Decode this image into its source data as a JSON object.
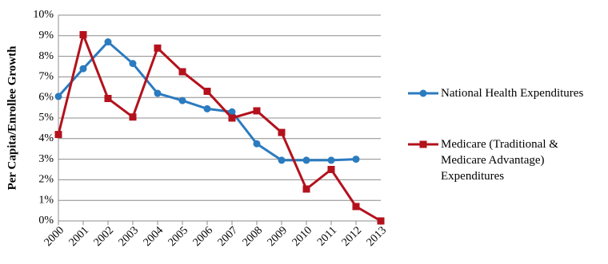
{
  "chart_data": {
    "type": "line",
    "y_label": "Per Capita/Enrollee Growth",
    "categories": [
      "2000",
      "2001",
      "2002",
      "2003",
      "2004",
      "2005",
      "2006",
      "2007",
      "2008",
      "2009",
      "2010",
      "2011",
      "2012",
      "2013"
    ],
    "series": [
      {
        "name": "National Health Expenditures",
        "color": "#2b7bbf",
        "marker": "circle",
        "values": [
          6.05,
          7.4,
          8.7,
          7.65,
          6.2,
          5.85,
          5.45,
          5.3,
          3.75,
          2.95,
          2.95,
          2.95,
          3.0,
          null
        ]
      },
      {
        "name": "Medicare (Traditional & Medicare Advantage) Expenditures",
        "color": "#b3121d",
        "marker": "square",
        "values": [
          4.2,
          9.05,
          5.95,
          5.05,
          8.4,
          7.25,
          6.3,
          5.0,
          5.35,
          4.3,
          1.55,
          2.5,
          0.7,
          0.0
        ]
      }
    ],
    "ylim": [
      0,
      10
    ],
    "yticks": [
      {
        "value": 0,
        "label": "0%"
      },
      {
        "value": 1,
        "label": "1%"
      },
      {
        "value": 2,
        "label": "2%"
      },
      {
        "value": 3,
        "label": "3%"
      },
      {
        "value": 4,
        "label": "4%"
      },
      {
        "value": 5,
        "label": "5%"
      },
      {
        "value": 6,
        "label": "6%"
      },
      {
        "value": 7,
        "label": "7%"
      },
      {
        "value": 8,
        "label": "8%"
      },
      {
        "value": 9,
        "label": "9%"
      },
      {
        "value": 10,
        "label": "10%"
      }
    ],
    "grid": true
  }
}
